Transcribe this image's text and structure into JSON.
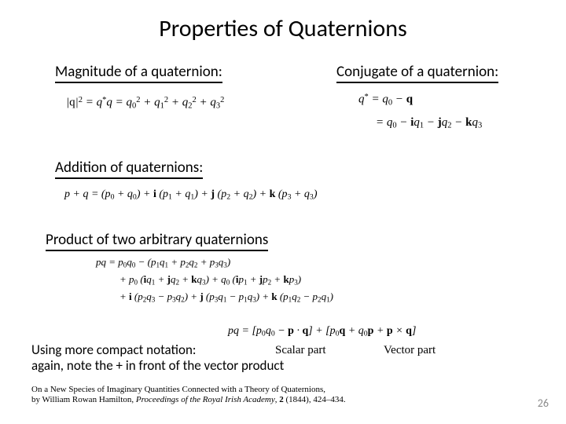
{
  "title": "Properties of Quaternions",
  "sections": {
    "magnitude": {
      "heading": "Magnitude of a quaternion:",
      "equation_html": "|<span class='rm'>q</span>|<sup>2</sup> = q<sup>*</sup>q = q<sub>0</sub><sup>2</sup> + q<sub>1</sub><sup>2</sup> + q<sub>2</sub><sup>2</sup> + q<sub>3</sub><sup>2</sup>"
    },
    "conjugate": {
      "heading": "Conjugate of a quaternion:",
      "equation1_html": "q<sup>*</sup> = q<sub>0</sub> − <span class='bf'>q</span>",
      "equation2_html": "= q<sub>0</sub> − <span class='bf'>i</span>q<sub>1</sub> − <span class='bf'>j</span>q<sub>2</sub> − <span class='bf'>k</span>q<sub>3</sub>"
    },
    "addition": {
      "heading": "Addition of quaternions:",
      "equation_html": "p + q = (p<sub>0</sub> + q<sub>0</sub>) + <span class='bf'>i</span> (p<sub>1</sub> + q<sub>1</sub>) + <span class='bf'>j</span> (p<sub>2</sub> + q<sub>2</sub>) + <span class='bf'>k</span> (p<sub>3</sub> + q<sub>3</sub>)"
    },
    "product": {
      "heading": "Product of two arbitrary quaternions",
      "line1_html": "pq = p<sub>0</sub>q<sub>0</sub> − (p<sub>1</sub>q<sub>1</sub> + p<sub>2</sub>q<sub>2</sub> + p<sub>3</sub>q<sub>3</sub>)",
      "line2_html": "+ p<sub>0</sub> (<span class='bf'>i</span>q<sub>1</sub> + <span class='bf'>j</span>q<sub>2</sub> + <span class='bf'>k</span>q<sub>3</sub>) + q<sub>0</sub> (<span class='bf'>i</span>p<sub>1</sub> + <span class='bf'>j</span>p<sub>2</sub> + <span class='bf'>k</span>p<sub>3</sub>)",
      "line3_html": "+ <span class='bf'>i</span> (p<sub>2</sub>q<sub>3</sub> − p<sub>3</sub>q<sub>2</sub>) + <span class='bf'>j</span> (p<sub>3</sub>q<sub>1</sub> − p<sub>1</sub>q<sub>3</sub>) + <span class='bf'>k</span> (p<sub>1</sub>q<sub>2</sub> − p<sub>2</sub>q<sub>1</sub>)"
    },
    "compact": {
      "equation_html": "pq = [p<sub>0</sub>q<sub>0</sub> − <span class='bf'>p</span> · <span class='bf'>q</span>] + [p<sub>0</sub><span class='bf'>q</span> + q<sub>0</sub><span class='bf'>p</span> + <span class='bf'>p</span> × <span class='bf'>q</span>]",
      "scalar_label": "Scalar part",
      "vector_label": "Vector part",
      "note_line1": "Using more compact notation:",
      "note_line2": "again, note the + in front of the vector product"
    }
  },
  "citation": {
    "line1_html": "On a New Species of Imaginary Quantities Connected with a Theory of Quaternions,",
    "line2_html": "by William Rowan Hamilton, <span class='ital'>Proceedings of the Royal Irish Academy</span>, <span class='bold'>2</span> (1844), 424–434."
  },
  "page_number": "26",
  "colors": {
    "background": "#ffffff",
    "text": "#000000",
    "pagenum": "#8b8b8b",
    "rule": "#000000"
  },
  "typography": {
    "title_font": "Calibri",
    "title_size_pt": 30,
    "heading_size_pt": 19,
    "body_size_pt": 17,
    "equation_font": "Cambria Math / Times italic",
    "citation_font": "Times New Roman",
    "citation_size_pt": 11
  }
}
